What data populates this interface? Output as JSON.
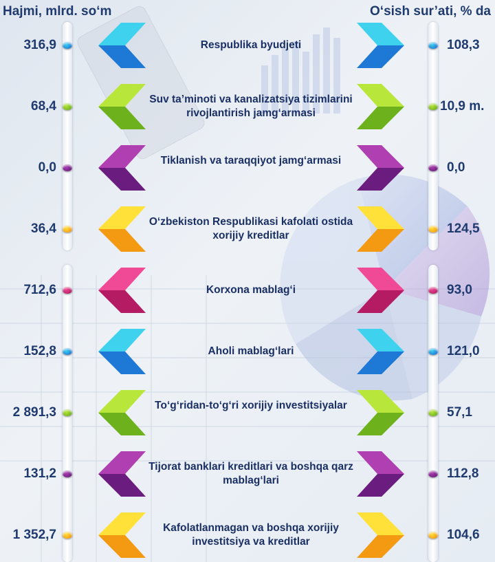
{
  "headers": {
    "left": "Hajmi, mlrd. so‘m",
    "right": "O‘sish sur’ati, % da"
  },
  "rows": [
    {
      "volume": "316,9",
      "label": "Respublika byudjeti",
      "growth": "108,3",
      "color": "#1e78d6",
      "color_light": "#3fd2ee"
    },
    {
      "volume": "68,4",
      "label": "Suv ta’minoti va kanalizatsiya tizimlarini rivojlantirish jamg‘armasi",
      "growth": "10,9 m.",
      "color": "#6db21d",
      "color_light": "#b9e63a"
    },
    {
      "volume": "0,0",
      "label": "Tiklanish va taraqqiyot jamg‘armasi",
      "growth": "0,0",
      "color": "#6a1d7e",
      "color_light": "#b03fb2"
    },
    {
      "volume": "36,4",
      "label": "O‘zbekiston Respublikasi kafolati ostida xorijiy kreditlar",
      "growth": "124,5",
      "color": "#f39a12",
      "color_light": "#ffe13a"
    },
    {
      "volume": "712,6",
      "label": "Korxona mablag‘i",
      "growth": "93,0",
      "color": "#b51b63",
      "color_light": "#f04a96"
    },
    {
      "volume": "152,8",
      "label": "Aholi mablag‘lari",
      "growth": "121,0",
      "color": "#1e78d6",
      "color_light": "#3fd2ee"
    },
    {
      "volume": "2 891,3",
      "label": "To‘g‘ridan-to‘g‘ri xorijiy investitsiyalar",
      "growth": "57,1",
      "color": "#6db21d",
      "color_light": "#b9e63a"
    },
    {
      "volume": "131,2",
      "label": "Tijorat banklari kreditlari va  boshqa qarz mablag‘lari",
      "growth": "112,8",
      "color": "#6a1d7e",
      "color_light": "#b03fb2"
    },
    {
      "volume": "1 352,7",
      "label": "Kafolatlanmagan va boshqa xorijiy investitsiya va kreditlar",
      "growth": "104,6",
      "color": "#f39a12",
      "color_light": "#ffe13a"
    }
  ]
}
